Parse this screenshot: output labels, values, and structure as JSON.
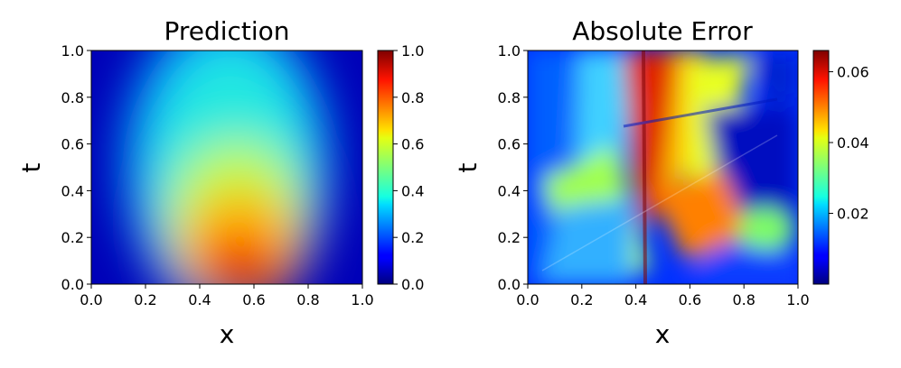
{
  "chart_data": [
    {
      "type": "heatmap",
      "title": "Prediction",
      "xlabel": "x",
      "ylabel": "t",
      "xlim": [
        0.0,
        1.0
      ],
      "ylim": [
        0.0,
        1.0
      ],
      "xticks": [
        "0.0",
        "0.2",
        "0.4",
        "0.6",
        "0.8",
        "1.0"
      ],
      "yticks": [
        "0.0",
        "0.2",
        "0.4",
        "0.6",
        "0.8",
        "1.0"
      ],
      "colormap": "jet",
      "colorbar": {
        "min": 0.0,
        "max": 1.0,
        "ticks": [
          "0.0",
          "0.2",
          "0.4",
          "0.6",
          "0.8",
          "1.0"
        ]
      },
      "field": {
        "peak": {
          "x": 0.55,
          "t": 0.0,
          "value": 0.97
        },
        "description_values": [
          {
            "x": 0.5,
            "t": 0.2,
            "value": 0.85
          },
          {
            "x": 0.5,
            "t": 0.4,
            "value": 0.6
          },
          {
            "x": 0.5,
            "t": 0.6,
            "value": 0.45
          },
          {
            "x": 0.5,
            "t": 0.9,
            "value": 0.35
          },
          {
            "x": 0.05,
            "t": 0.5,
            "value": 0.1
          },
          {
            "x": 0.95,
            "t": 0.5,
            "value": 0.08
          }
        ]
      }
    },
    {
      "type": "heatmap",
      "title": "Absolute Error",
      "xlabel": "x",
      "ylabel": "t",
      "xlim": [
        0.0,
        1.0
      ],
      "ylim": [
        0.0,
        1.0
      ],
      "xticks": [
        "0.0",
        "0.2",
        "0.4",
        "0.6",
        "0.8",
        "1.0"
      ],
      "yticks": [
        "0.0",
        "0.2",
        "0.4",
        "0.6",
        "0.8",
        "1.0"
      ],
      "colormap": "jet",
      "colorbar": {
        "min": 0.0,
        "max": 0.066,
        "ticks": [
          "0.02",
          "0.04",
          "0.06"
        ],
        "tick_values": [
          0.02,
          0.04,
          0.06
        ]
      },
      "field": {
        "description_values": [
          {
            "x": 0.42,
            "t": 0.7,
            "value": 0.063
          },
          {
            "x": 0.45,
            "t": 0.2,
            "value": 0.06
          },
          {
            "x": 0.55,
            "t": 0.6,
            "value": 0.048
          },
          {
            "x": 0.85,
            "t": 0.22,
            "value": 0.04
          },
          {
            "x": 0.05,
            "t": 0.8,
            "value": 0.005
          },
          {
            "x": 0.85,
            "t": 0.55,
            "value": 0.004
          }
        ]
      }
    }
  ]
}
